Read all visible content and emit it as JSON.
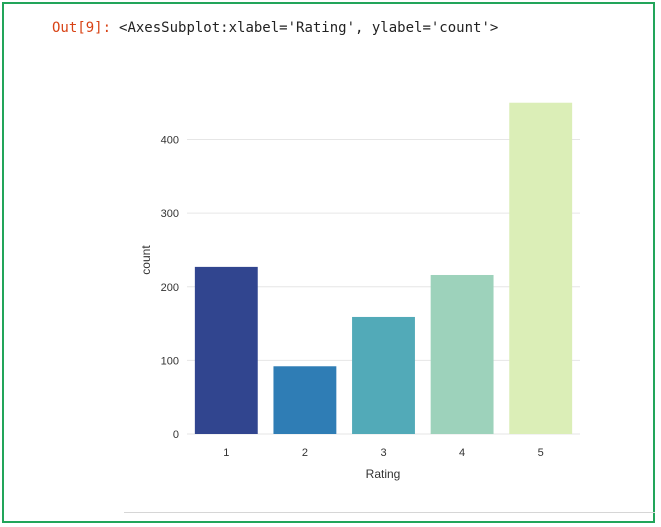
{
  "output": {
    "prompt": "Out[9]:",
    "repr": "<AxesSubplot:xlabel='Rating', ylabel='count'>"
  },
  "chart_data": {
    "type": "bar",
    "categories": [
      "1",
      "2",
      "3",
      "4",
      "5"
    ],
    "values": [
      227,
      92,
      159,
      216,
      450
    ],
    "colors": [
      "#31458f",
      "#2f7db5",
      "#52aab8",
      "#9dd2bb",
      "#dbeeb7"
    ],
    "title": "",
    "xlabel": "Rating",
    "ylabel": "count",
    "ylim": [
      0,
      470
    ],
    "yticks": [
      0,
      100,
      200,
      300,
      400
    ],
    "grid": true
  }
}
